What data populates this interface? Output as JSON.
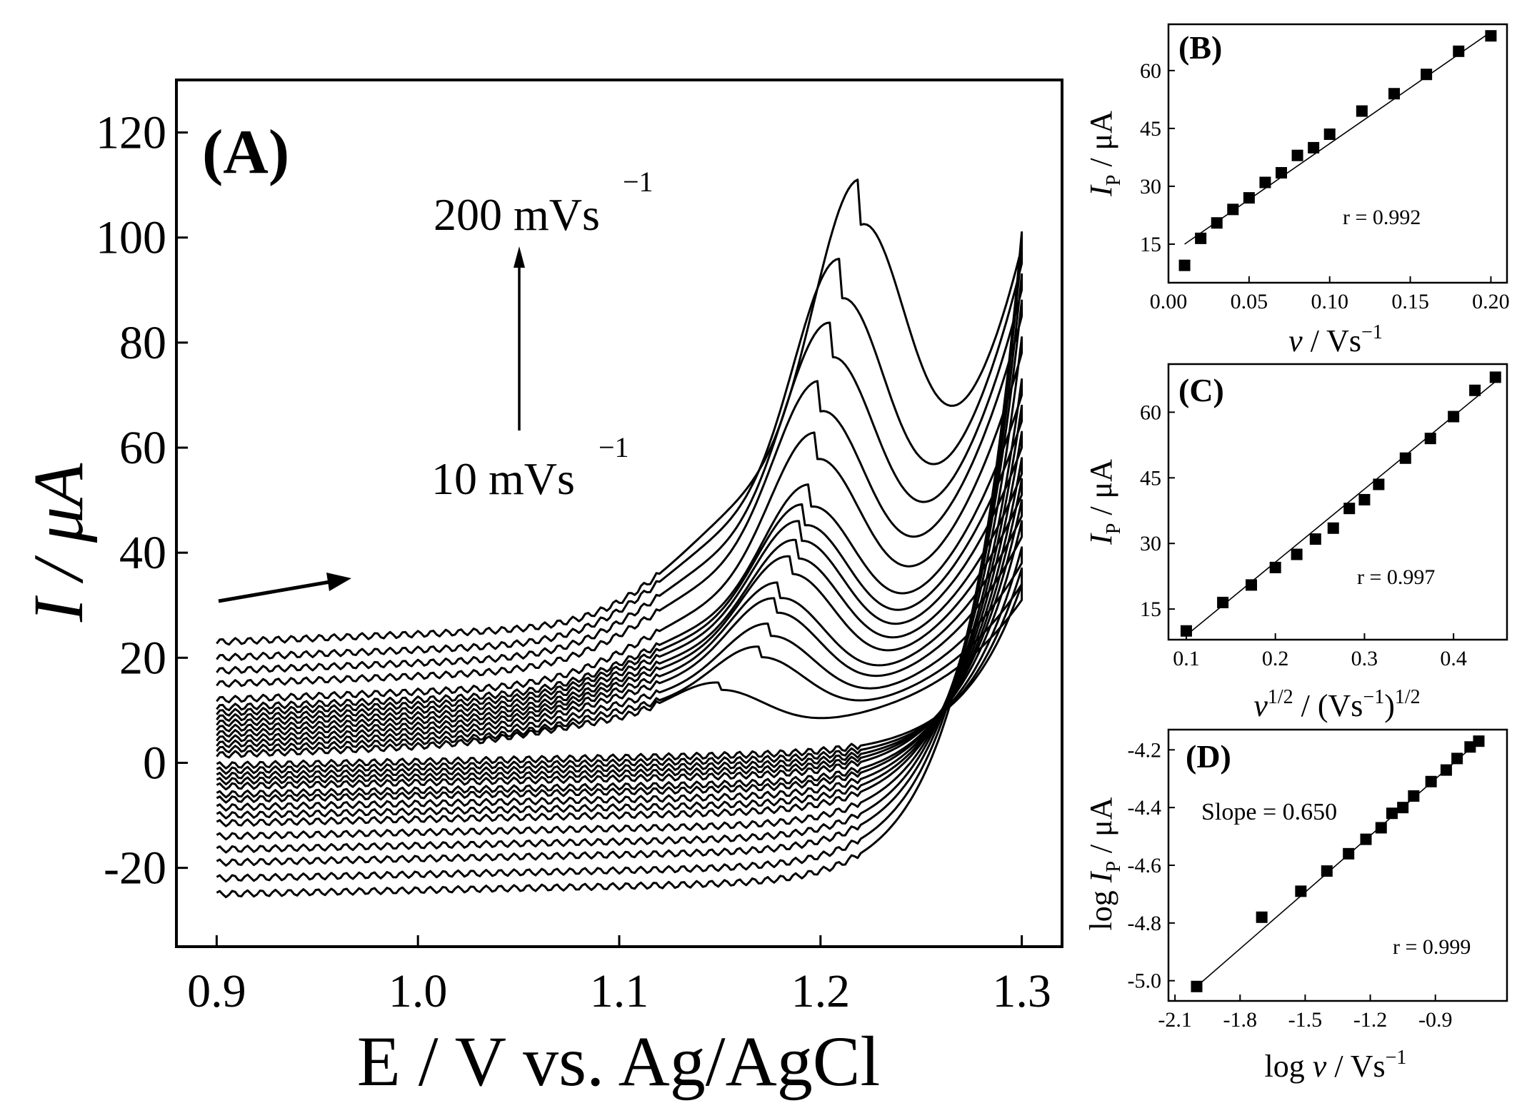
{
  "chart_data": [
    {
      "type": "line",
      "panel": "(A)",
      "title": "",
      "xlabel": "E / V vs. Ag/AgCl",
      "ylabel": "I / μA",
      "xlim": [
        0.88,
        1.32
      ],
      "ylim": [
        -35,
        130
      ],
      "xticks": [
        0.9,
        1.0,
        1.1,
        1.2,
        1.3
      ],
      "xtick_labels": [
        "0.9",
        "1.0",
        "1.1",
        "1.2",
        "1.3"
      ],
      "yticks": [
        -20,
        0,
        20,
        40,
        60,
        80,
        100,
        120
      ],
      "ytick_labels": [
        "-20",
        "0",
        "20",
        "40",
        "60",
        "80",
        "100",
        "120"
      ],
      "annotations": {
        "top": "200 mVs",
        "bottom": "10 mVs",
        "exponent": "−1"
      },
      "description": "Cyclic voltammograms, scan rates 10 to 200 mV/s, anodic scan from 0.9 to 1.3 V",
      "curves": [
        {
          "rate_mVs": 10,
          "start_fwd": 1.5,
          "peak_E": 1.15,
          "peak_I": 15.5,
          "end_fwd": 31,
          "start_rev": -0.5
        },
        {
          "rate_mVs": 20,
          "start_fwd": 2.5,
          "peak_E": 1.17,
          "peak_I": 22.5,
          "end_fwd": 34,
          "start_rev": -1.5
        },
        {
          "rate_mVs": 30,
          "start_fwd": 3.5,
          "peak_E": 1.175,
          "peak_I": 27.0,
          "end_fwd": 38,
          "start_rev": -2.5
        },
        {
          "rate_mVs": 40,
          "start_fwd": 4.5,
          "peak_E": 1.178,
          "peak_I": 32.0,
          "end_fwd": 43,
          "start_rev": -3.5
        },
        {
          "rate_mVs": 50,
          "start_fwd": 5.5,
          "peak_E": 1.18,
          "peak_I": 35.0,
          "end_fwd": 47,
          "start_rev": -4.5
        },
        {
          "rate_mVs": 60,
          "start_fwd": 6.5,
          "peak_E": 1.185,
          "peak_I": 40.0,
          "end_fwd": 51,
          "start_rev": -6.0
        },
        {
          "rate_mVs": 70,
          "start_fwd": 7.5,
          "peak_E": 1.188,
          "peak_I": 43.0,
          "end_fwd": 55,
          "start_rev": -7.0
        },
        {
          "rate_mVs": 80,
          "start_fwd": 8.5,
          "peak_E": 1.19,
          "peak_I": 46.5,
          "end_fwd": 60,
          "start_rev": -8.5
        },
        {
          "rate_mVs": 90,
          "start_fwd": 9.5,
          "peak_E": 1.192,
          "peak_I": 49.5,
          "end_fwd": 65,
          "start_rev": -10.0
        },
        {
          "rate_mVs": 100,
          "start_fwd": 10.5,
          "peak_E": 1.195,
          "peak_I": 53.0,
          "end_fwd": 70,
          "start_rev": -11.5
        },
        {
          "rate_mVs": 120,
          "start_fwd": 12.0,
          "peak_E": 1.198,
          "peak_I": 63.0,
          "end_fwd": 78,
          "start_rev": -14.0
        },
        {
          "rate_mVs": 140,
          "start_fwd": 15.0,
          "peak_E": 1.2,
          "peak_I": 73.0,
          "end_fwd": 85,
          "start_rev": -16.5
        },
        {
          "rate_mVs": 160,
          "start_fwd": 17.5,
          "peak_E": 1.205,
          "peak_I": 84.0,
          "end_fwd": 90,
          "start_rev": -19.0
        },
        {
          "rate_mVs": 180,
          "start_fwd": 20.0,
          "peak_E": 1.21,
          "peak_I": 96.0,
          "end_fwd": 95,
          "start_rev": -22.0
        },
        {
          "rate_mVs": 200,
          "start_fwd": 23.0,
          "peak_E": 1.22,
          "peak_I": 110.0,
          "end_fwd": 98,
          "start_rev": -25.0
        }
      ]
    },
    {
      "type": "scatter",
      "panel": "(B)",
      "xlabel_var": "v",
      "xlabel_unit": " / Vs",
      "xlabel_exp": "−1",
      "ylabel_var": "I",
      "ylabel_sub": "P",
      "ylabel_unit": " / μA",
      "xlim": [
        0.0,
        0.21
      ],
      "ylim": [
        5,
        72
      ],
      "xticks": [
        0.0,
        0.05,
        0.1,
        0.15,
        0.2
      ],
      "xtick_labels": [
        "0.00",
        "0.05",
        "0.10",
        "0.15",
        "0.20"
      ],
      "yticks": [
        15,
        30,
        45,
        60
      ],
      "ytick_labels": [
        "15",
        "30",
        "45",
        "60"
      ],
      "r_text": "r = 0.992",
      "x": [
        0.01,
        0.02,
        0.03,
        0.04,
        0.05,
        0.06,
        0.07,
        0.08,
        0.09,
        0.1,
        0.12,
        0.14,
        0.16,
        0.18,
        0.2
      ],
      "y": [
        9.5,
        16.5,
        20.5,
        24.0,
        27.0,
        31.0,
        33.5,
        38.0,
        40.0,
        43.5,
        49.5,
        54.0,
        59.0,
        65.0,
        69.0
      ],
      "fit": {
        "x": [
          0.01,
          0.2
        ],
        "y": [
          15.0,
          70.0
        ]
      }
    },
    {
      "type": "scatter",
      "panel": "(C)",
      "xlabel_var": "v",
      "xlabel_sup": "1/2",
      "xlabel_unit": " / (Vs",
      "xlabel_exp": "−1",
      "xlabel_close": ")",
      "xlabel_sup2": "1/2",
      "ylabel_var": "I",
      "ylabel_sub": "P",
      "ylabel_unit": " / μA",
      "xlim": [
        0.08,
        0.46
      ],
      "ylim": [
        8,
        71
      ],
      "xticks": [
        0.1,
        0.2,
        0.3,
        0.4
      ],
      "xtick_labels": [
        "0.1",
        "0.2",
        "0.3",
        "0.4"
      ],
      "yticks": [
        15,
        30,
        45,
        60
      ],
      "ytick_labels": [
        "15",
        "30",
        "45",
        "60"
      ],
      "r_text": "r = 0.997",
      "x": [
        0.1,
        0.141,
        0.173,
        0.2,
        0.224,
        0.245,
        0.265,
        0.283,
        0.3,
        0.316,
        0.346,
        0.374,
        0.4,
        0.424,
        0.447
      ],
      "y": [
        10.0,
        16.5,
        20.5,
        24.5,
        27.5,
        31.0,
        33.5,
        38.0,
        40.0,
        43.5,
        49.5,
        54.0,
        59.0,
        65.0,
        68.0
      ],
      "fit": {
        "x": [
          0.1,
          0.447
        ],
        "y": [
          9.0,
          67.0
        ]
      }
    },
    {
      "type": "scatter",
      "panel": "(D)",
      "xlabel_pre": "log ",
      "xlabel_var": "v",
      "xlabel_unit": " / Vs",
      "xlabel_exp": "−1",
      "ylabel_pre": "log ",
      "ylabel_var": "I",
      "ylabel_sub": "P",
      "ylabel_unit": " / μA",
      "xlim": [
        -2.13,
        -0.57
      ],
      "ylim": [
        -5.07,
        -4.13
      ],
      "xticks": [
        -2.1,
        -1.8,
        -1.5,
        -1.2,
        -0.9
      ],
      "xtick_labels": [
        "-2.1",
        "-1.8",
        "-1.5",
        "-1.2",
        "-0.9"
      ],
      "yticks": [
        -5.0,
        -4.8,
        -4.6,
        -4.4,
        -4.2
      ],
      "ytick_labels": [
        "-5.0",
        "-4.8",
        "-4.6",
        "-4.4",
        "-4.2"
      ],
      "r_text": "r = 0.999",
      "slope_text": "Slope = 0.650",
      "x": [
        -2.0,
        -1.7,
        -1.52,
        -1.4,
        -1.3,
        -1.22,
        -1.15,
        -1.1,
        -1.05,
        -1.0,
        -0.92,
        -0.85,
        -0.8,
        -0.74,
        -0.7
      ],
      "y": [
        -5.02,
        -4.78,
        -4.69,
        -4.62,
        -4.56,
        -4.51,
        -4.47,
        -4.42,
        -4.4,
        -4.36,
        -4.31,
        -4.27,
        -4.23,
        -4.19,
        -4.17
      ],
      "fit": {
        "x": [
          -2.0,
          -0.7
        ],
        "y": [
          -5.02,
          -4.17
        ]
      }
    }
  ]
}
